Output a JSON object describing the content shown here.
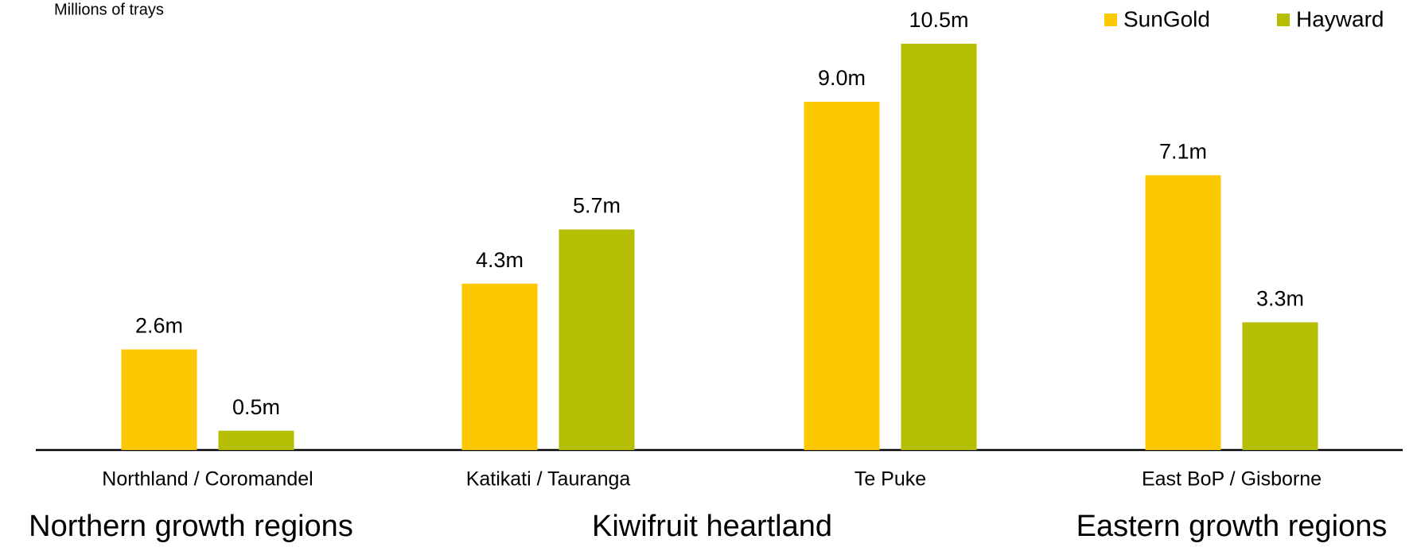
{
  "chart_data": {
    "type": "bar",
    "y_axis_label": "Millions of trays",
    "categories": [
      "Northland / Coromandel",
      "Katikati / Tauranga",
      "Te Puke",
      "East BoP / Gisborne"
    ],
    "region_groups": [
      "Northern growth regions",
      "Kiwifruit heartland",
      "Eastern growth regions"
    ],
    "series": [
      {
        "name": "SunGold",
        "color": "#fcc900",
        "values": [
          2.6,
          4.3,
          9.0,
          7.1
        ],
        "value_labels": [
          "2.6m",
          "4.3m",
          "9.0m",
          "7.1m"
        ]
      },
      {
        "name": "Hayward",
        "color": "#b5be00",
        "values": [
          0.5,
          5.7,
          10.5,
          3.3
        ],
        "value_labels": [
          "0.5m",
          "5.7m",
          "10.5m",
          "3.3m"
        ]
      }
    ],
    "legend": "top-right"
  }
}
